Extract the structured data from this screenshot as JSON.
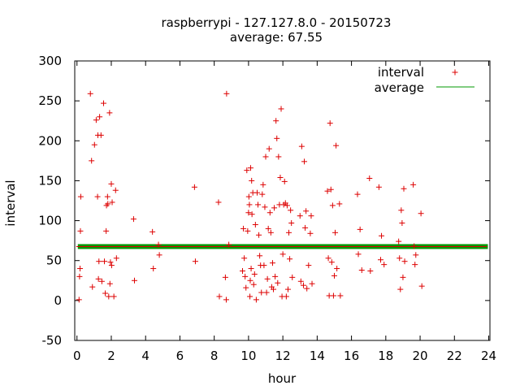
{
  "chart_data": {
    "type": "scatter",
    "title_line1": "raspberrypi - 127.127.8.0 - 20150723",
    "title_line2": "average: 67.55",
    "xlabel": "hour",
    "ylabel": "interval",
    "xlim": [
      -0.13,
      24.07
    ],
    "ylim": [
      -50,
      300
    ],
    "xticks": [
      0,
      2,
      4,
      6,
      8,
      10,
      12,
      14,
      16,
      18,
      20,
      22,
      24
    ],
    "yticks": [
      -50,
      0,
      50,
      100,
      150,
      200,
      250,
      300
    ],
    "legend_position": "top-right",
    "marker_color": "#dd0000",
    "average_color": "#009900",
    "series": [
      {
        "name": "interval",
        "marker": "+",
        "points": [
          [
            0.12,
            1
          ],
          [
            0.15,
            30
          ],
          [
            0.18,
            40
          ],
          [
            0.2,
            87
          ],
          [
            0.22,
            130
          ],
          [
            0.78,
            259
          ],
          [
            0.85,
            175
          ],
          [
            0.9,
            17
          ],
          [
            1.02,
            195
          ],
          [
            1.12,
            226
          ],
          [
            1.2,
            130
          ],
          [
            1.22,
            207
          ],
          [
            1.25,
            27
          ],
          [
            1.28,
            49
          ],
          [
            1.32,
            230
          ],
          [
            1.4,
            207
          ],
          [
            1.45,
            24
          ],
          [
            1.55,
            247
          ],
          [
            1.6,
            49
          ],
          [
            1.65,
            9
          ],
          [
            1.7,
            87
          ],
          [
            1.72,
            119
          ],
          [
            1.78,
            130
          ],
          [
            1.8,
            121
          ],
          [
            1.85,
            5
          ],
          [
            1.9,
            235
          ],
          [
            1.92,
            21
          ],
          [
            1.95,
            48
          ],
          [
            2.0,
            146
          ],
          [
            2.02,
            44
          ],
          [
            2.05,
            123
          ],
          [
            2.15,
            5
          ],
          [
            2.25,
            138
          ],
          [
            2.3,
            53
          ],
          [
            3.3,
            102
          ],
          [
            3.35,
            25
          ],
          [
            4.4,
            86
          ],
          [
            4.45,
            40
          ],
          [
            4.75,
            70
          ],
          [
            4.8,
            57
          ],
          [
            6.85,
            142
          ],
          [
            6.9,
            49
          ],
          [
            8.25,
            123
          ],
          [
            8.3,
            5
          ],
          [
            8.65,
            29
          ],
          [
            8.7,
            1
          ],
          [
            8.72,
            259
          ],
          [
            8.85,
            70
          ],
          [
            9.65,
            37
          ],
          [
            9.7,
            90
          ],
          [
            9.75,
            53
          ],
          [
            9.8,
            30
          ],
          [
            9.85,
            16
          ],
          [
            9.9,
            163
          ],
          [
            9.95,
            87
          ],
          [
            10.0,
            110
          ],
          [
            10.02,
            130
          ],
          [
            10.05,
            120
          ],
          [
            10.08,
            5
          ],
          [
            10.1,
            25
          ],
          [
            10.12,
            166
          ],
          [
            10.15,
            40
          ],
          [
            10.18,
            150
          ],
          [
            10.2,
            108
          ],
          [
            10.25,
            135
          ],
          [
            10.3,
            20
          ],
          [
            10.35,
            33
          ],
          [
            10.4,
            95
          ],
          [
            10.45,
            1
          ],
          [
            10.5,
            135
          ],
          [
            10.55,
            120
          ],
          [
            10.6,
            82
          ],
          [
            10.65,
            56
          ],
          [
            10.7,
            44
          ],
          [
            10.75,
            10
          ],
          [
            10.8,
            133
          ],
          [
            10.85,
            145
          ],
          [
            10.9,
            44
          ],
          [
            10.95,
            117
          ],
          [
            11.0,
            180
          ],
          [
            11.05,
            10
          ],
          [
            11.1,
            27
          ],
          [
            11.15,
            90
          ],
          [
            11.2,
            190
          ],
          [
            11.25,
            110
          ],
          [
            11.3,
            85
          ],
          [
            11.35,
            17
          ],
          [
            11.4,
            47
          ],
          [
            11.45,
            14
          ],
          [
            11.5,
            116
          ],
          [
            11.55,
            30
          ],
          [
            11.6,
            225
          ],
          [
            11.65,
            203
          ],
          [
            11.7,
            22
          ],
          [
            11.75,
            180
          ],
          [
            11.8,
            120
          ],
          [
            11.85,
            154
          ],
          [
            11.9,
            240
          ],
          [
            11.95,
            5
          ],
          [
            12.0,
            58
          ],
          [
            12.05,
            120
          ],
          [
            12.1,
            149
          ],
          [
            12.15,
            122
          ],
          [
            12.2,
            5
          ],
          [
            12.25,
            119
          ],
          [
            12.3,
            14
          ],
          [
            12.35,
            85
          ],
          [
            12.4,
            52
          ],
          [
            12.45,
            113
          ],
          [
            12.5,
            97
          ],
          [
            12.55,
            29
          ],
          [
            13.0,
            106
          ],
          [
            13.05,
            24
          ],
          [
            13.1,
            193
          ],
          [
            13.2,
            19
          ],
          [
            13.25,
            174
          ],
          [
            13.3,
            91
          ],
          [
            13.35,
            112
          ],
          [
            13.4,
            15
          ],
          [
            13.5,
            44
          ],
          [
            13.6,
            84
          ],
          [
            13.65,
            106
          ],
          [
            13.7,
            21
          ],
          [
            14.6,
            137
          ],
          [
            14.65,
            53
          ],
          [
            14.7,
            6
          ],
          [
            14.75,
            222
          ],
          [
            14.8,
            139
          ],
          [
            14.85,
            48
          ],
          [
            14.9,
            119
          ],
          [
            14.95,
            6
          ],
          [
            15.0,
            31
          ],
          [
            15.05,
            85
          ],
          [
            15.1,
            194
          ],
          [
            15.15,
            40
          ],
          [
            15.3,
            121
          ],
          [
            15.35,
            6
          ],
          [
            16.35,
            133
          ],
          [
            16.4,
            58
          ],
          [
            16.5,
            89
          ],
          [
            16.6,
            38
          ],
          [
            17.05,
            153
          ],
          [
            17.1,
            37
          ],
          [
            17.6,
            142
          ],
          [
            17.7,
            51
          ],
          [
            17.75,
            81
          ],
          [
            17.9,
            45
          ],
          [
            18.75,
            74
          ],
          [
            18.8,
            53
          ],
          [
            18.85,
            14
          ],
          [
            18.9,
            113
          ],
          [
            18.95,
            97
          ],
          [
            19.0,
            29
          ],
          [
            19.05,
            140
          ],
          [
            19.1,
            49
          ],
          [
            19.6,
            145
          ],
          [
            19.65,
            68
          ],
          [
            19.7,
            45
          ],
          [
            19.75,
            57
          ],
          [
            20.05,
            109
          ],
          [
            20.1,
            18
          ]
        ]
      },
      {
        "name": "average",
        "type": "line",
        "value": 67.55
      }
    ]
  }
}
